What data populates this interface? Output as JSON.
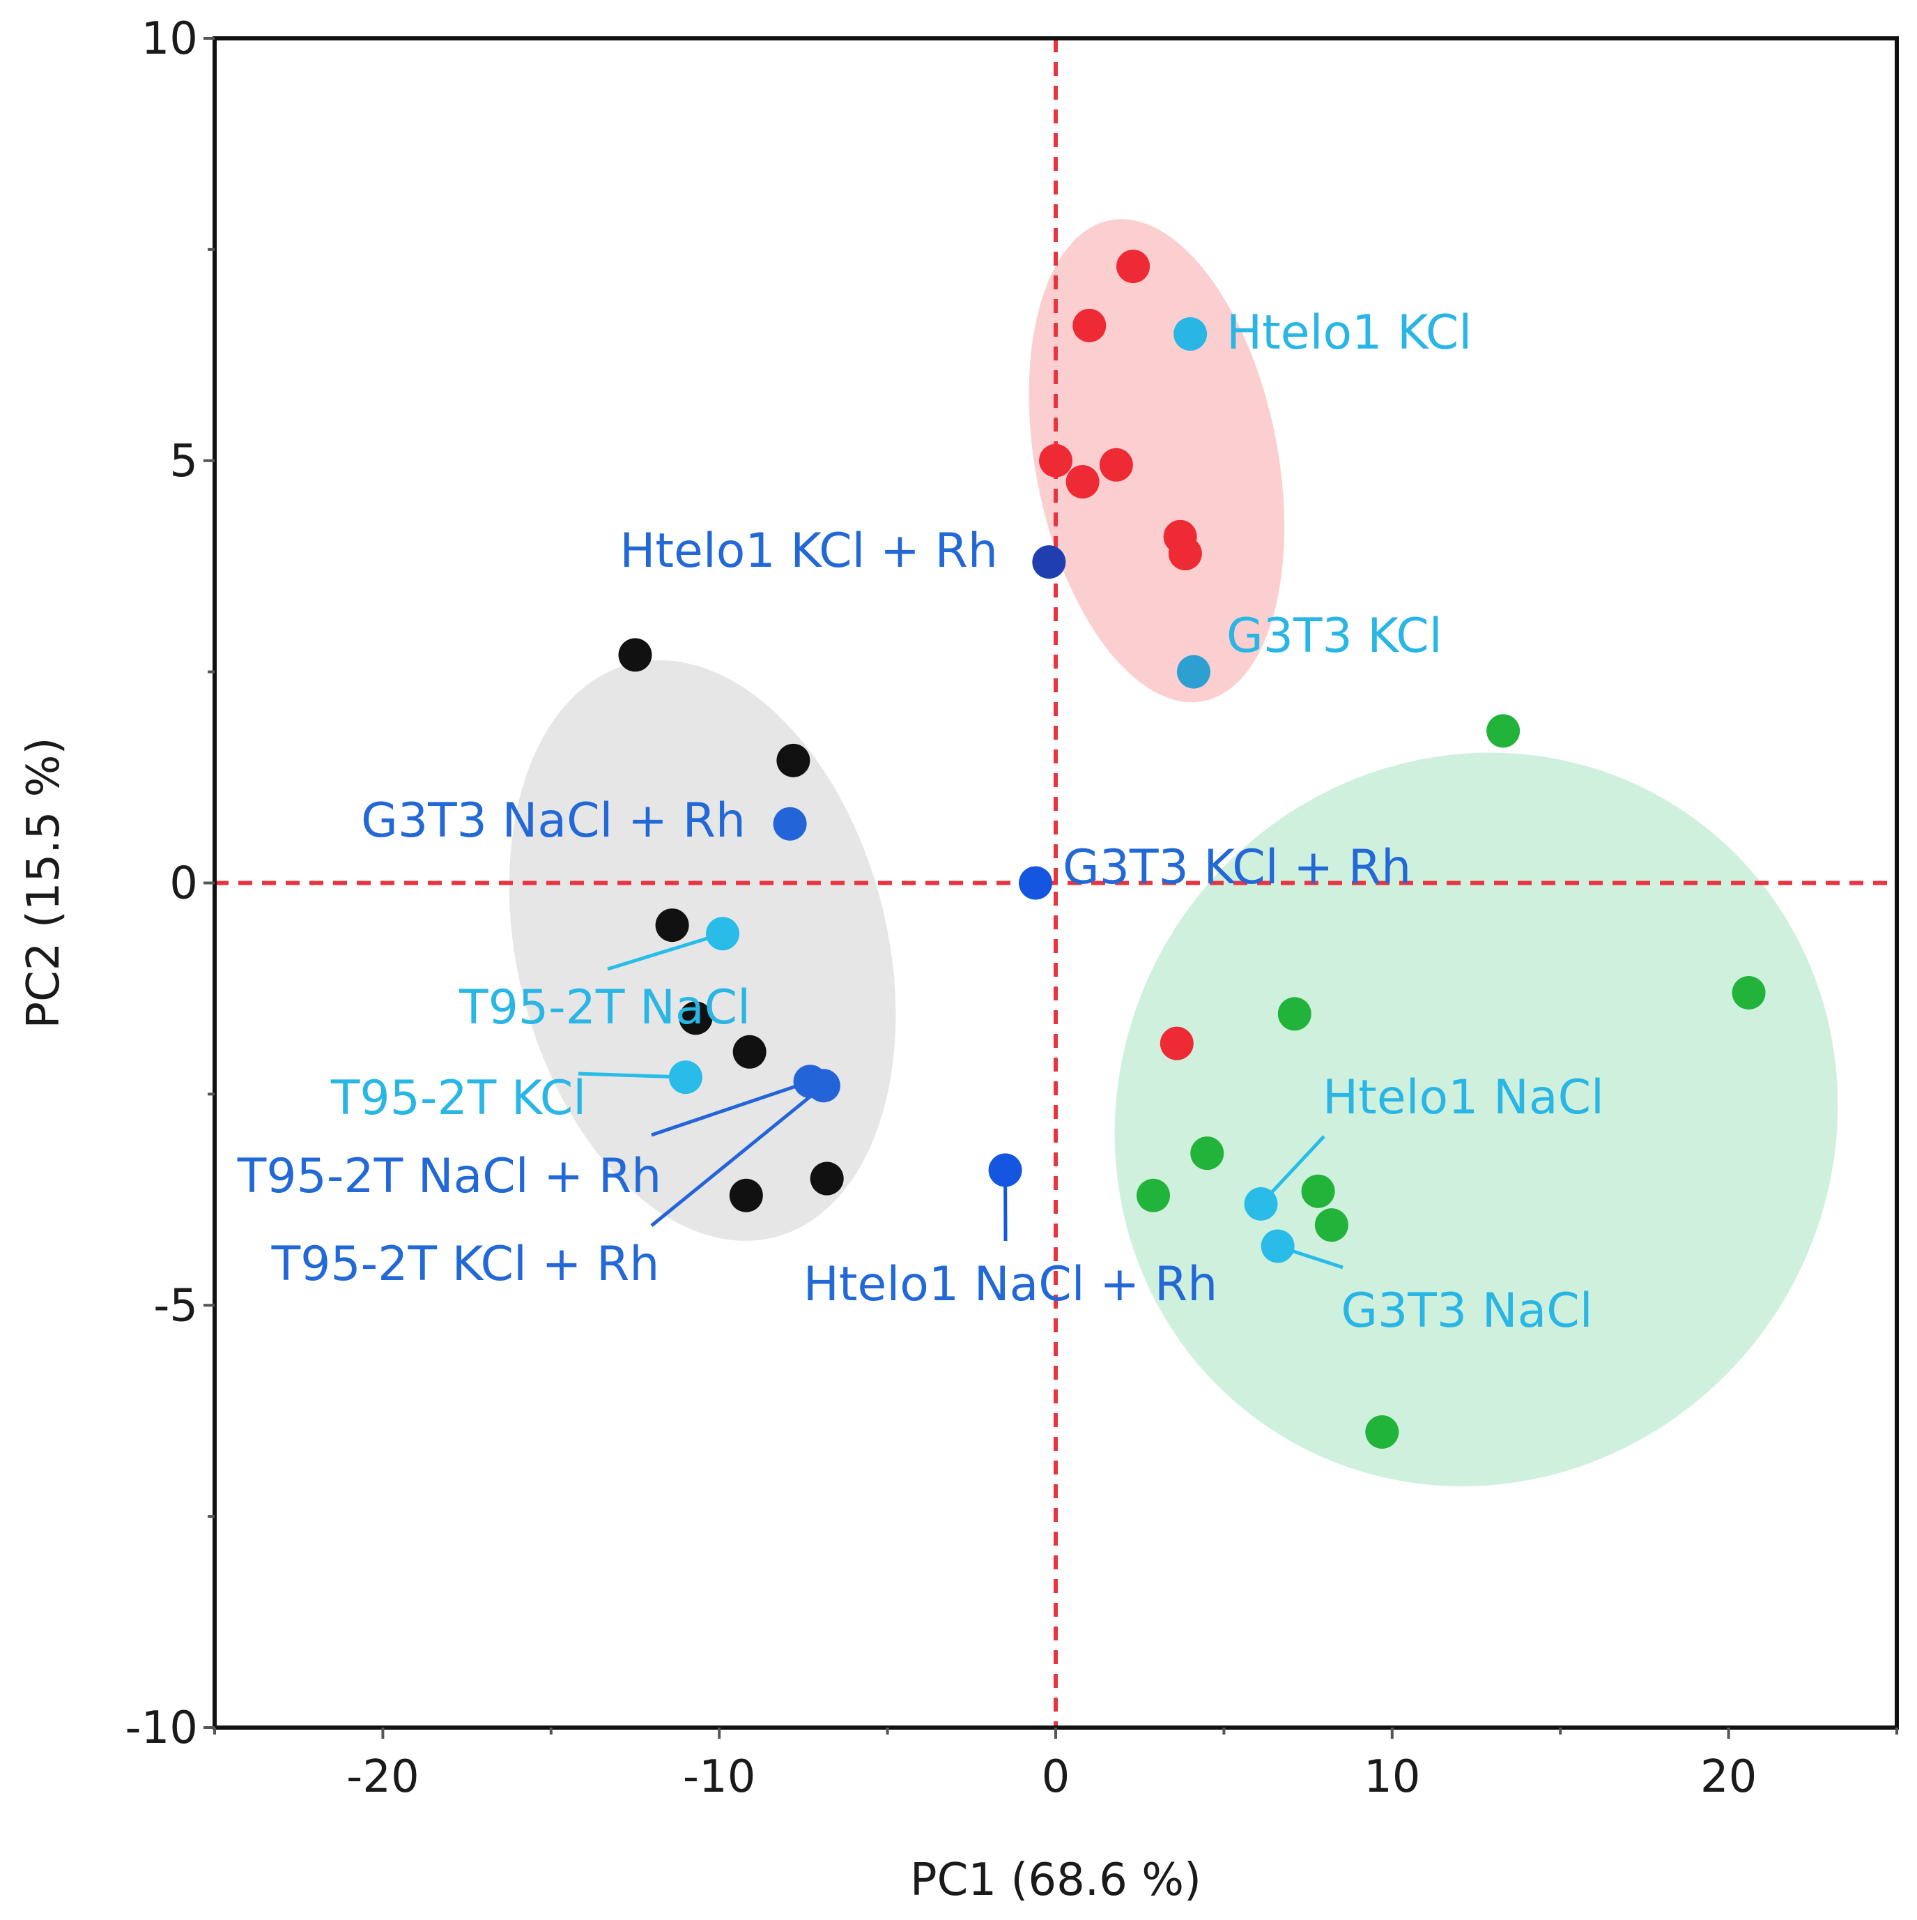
{
  "chart_data": {
    "type": "scatter",
    "title": "",
    "xlabel": "PC1  (68.6 %)",
    "ylabel": "PC2  (15.5 %)",
    "xlim": [
      -25,
      25
    ],
    "ylim": [
      -10,
      10
    ],
    "xticks": [
      -20,
      -10,
      0,
      10,
      20
    ],
    "yticks": [
      10,
      5,
      0,
      -5,
      -10
    ],
    "reference_lines": {
      "x": 0,
      "y": 0,
      "color": "#e8343f",
      "style": "dashed"
    },
    "groups": [
      {
        "name": "black-cluster",
        "fill": "#e6e6e6",
        "ellipse": {
          "cx": -10.5,
          "cy": -0.8,
          "rx": 5.5,
          "ry": 3.5,
          "angle": -14
        }
      },
      {
        "name": "red-cluster",
        "fill": "#fbcfcf",
        "ellipse": {
          "cx": 3.0,
          "cy": 5.0,
          "rx": 3.6,
          "ry": 2.9,
          "angle": -11
        }
      },
      {
        "name": "green-cluster",
        "fill": "#d0f0de",
        "ellipse": {
          "cx": 12.5,
          "cy": -2.8,
          "rx": 10.6,
          "ry": 4.4,
          "angle": 35
        }
      }
    ],
    "series": [
      {
        "name": "black",
        "color": "#111111",
        "points": [
          [
            -12.5,
            2.7
          ],
          [
            -7.8,
            1.45
          ],
          [
            -11.4,
            -0.5
          ],
          [
            -10.7,
            -1.6
          ],
          [
            -9.1,
            -2.0
          ],
          [
            -9.2,
            -3.7
          ],
          [
            -6.8,
            -3.5
          ]
        ]
      },
      {
        "name": "red",
        "color": "#ee2a35",
        "points": [
          [
            2.3,
            7.3
          ],
          [
            1.0,
            6.6
          ],
          [
            0.0,
            5.0
          ],
          [
            0.8,
            4.75
          ],
          [
            1.8,
            4.95
          ],
          [
            3.7,
            4.1
          ],
          [
            3.85,
            3.9
          ],
          [
            3.6,
            -1.9
          ]
        ]
      },
      {
        "name": "green",
        "color": "#22b33a",
        "points": [
          [
            13.3,
            1.8
          ],
          [
            20.6,
            -1.3
          ],
          [
            7.1,
            -1.55
          ],
          [
            4.5,
            -3.2
          ],
          [
            2.9,
            -3.7
          ],
          [
            7.8,
            -3.65
          ],
          [
            8.2,
            -4.05
          ],
          [
            9.7,
            -6.5
          ]
        ]
      }
    ],
    "labeled_points": [
      {
        "label": "Htelo1 KCl",
        "x": 4.0,
        "y": 6.5,
        "color": "#29b6e4",
        "label_color": "#29b6e4"
      },
      {
        "label": "G3T3 KCl",
        "x": 4.1,
        "y": 2.5,
        "color": "#2e9fd1",
        "label_color": "#29b6e4"
      },
      {
        "label": "Htelo1 KCl + Rh",
        "x": -0.2,
        "y": 3.8,
        "color": "#1f3fb0",
        "label_color": "#2268d6"
      },
      {
        "label": "G3T3 NaCl + Rh",
        "x": -7.9,
        "y": 0.7,
        "color": "#2365d8",
        "label_color": "#2268d6"
      },
      {
        "label": "G3T3 KCl + Rh",
        "x": -0.6,
        "y": 0.0,
        "color": "#1456e0",
        "label_color": "#2268d6"
      },
      {
        "label": "T95-2T NaCl",
        "x": -9.9,
        "y": -0.6,
        "color": "#29bce8",
        "label_color": "#29b6e4"
      },
      {
        "label": "T95-2T KCl",
        "x": -11.0,
        "y": -2.3,
        "color": "#29bce8",
        "label_color": "#29b6e4"
      },
      {
        "label": "T95-2T NaCl + Rh",
        "x": -7.3,
        "y": -2.35,
        "color": "#2365d8",
        "label_color": "#2268d6"
      },
      {
        "label": "T95-2T KCl + Rh",
        "x": -6.9,
        "y": -2.4,
        "color": "#2365d8",
        "label_color": "#2268d6"
      },
      {
        "label": "Htelo1 NaCl + Rh",
        "x": -1.5,
        "y": -3.4,
        "color": "#1456e0",
        "label_color": "#2268d6"
      },
      {
        "label": "Htelo1 NaCl",
        "x": 6.1,
        "y": -3.8,
        "color": "#29bce8",
        "label_color": "#29b6e4"
      },
      {
        "label": "G3T3 NaCl",
        "x": 6.6,
        "y": -4.3,
        "color": "#29bce8",
        "label_color": "#29b6e4"
      }
    ]
  }
}
